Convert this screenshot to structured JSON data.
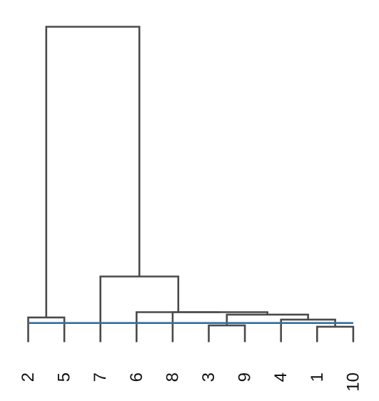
{
  "chart_data": {
    "type": "dendrogram",
    "title": "",
    "xlabel": "",
    "ylabel": "",
    "leaf_order": [
      "2",
      "5",
      "7",
      "6",
      "8",
      "3",
      "9",
      "4",
      "1",
      "10"
    ],
    "merges": [
      {
        "id": "m1",
        "children": [
          "1",
          "10"
        ],
        "height": 0.09
      },
      {
        "id": "m2",
        "children": [
          "3",
          "9"
        ],
        "height": 0.135
      },
      {
        "id": "m3",
        "children": [
          "4",
          "m1"
        ],
        "height": 0.34
      },
      {
        "id": "m4",
        "children": [
          "2",
          "5"
        ],
        "height": 0.415
      },
      {
        "id": "m5",
        "children": [
          "m2",
          "m3"
        ],
        "height": 0.515
      },
      {
        "id": "m6",
        "children": [
          "8",
          "m5"
        ],
        "height": 0.6
      },
      {
        "id": "m7",
        "children": [
          "6",
          "m6"
        ],
        "height": 0.6
      },
      {
        "id": "m8",
        "children": [
          "7",
          "m7"
        ],
        "height": 1.85
      },
      {
        "id": "m9",
        "children": [
          "m4",
          "m8"
        ],
        "height": 10.6
      }
    ],
    "cut_height": 0.22,
    "cut_color": "#2e6fa7",
    "branch_color": "#4a4a4a",
    "ylim": [
      -0.45,
      10.6
    ],
    "axes_visible": false,
    "grid": false
  }
}
